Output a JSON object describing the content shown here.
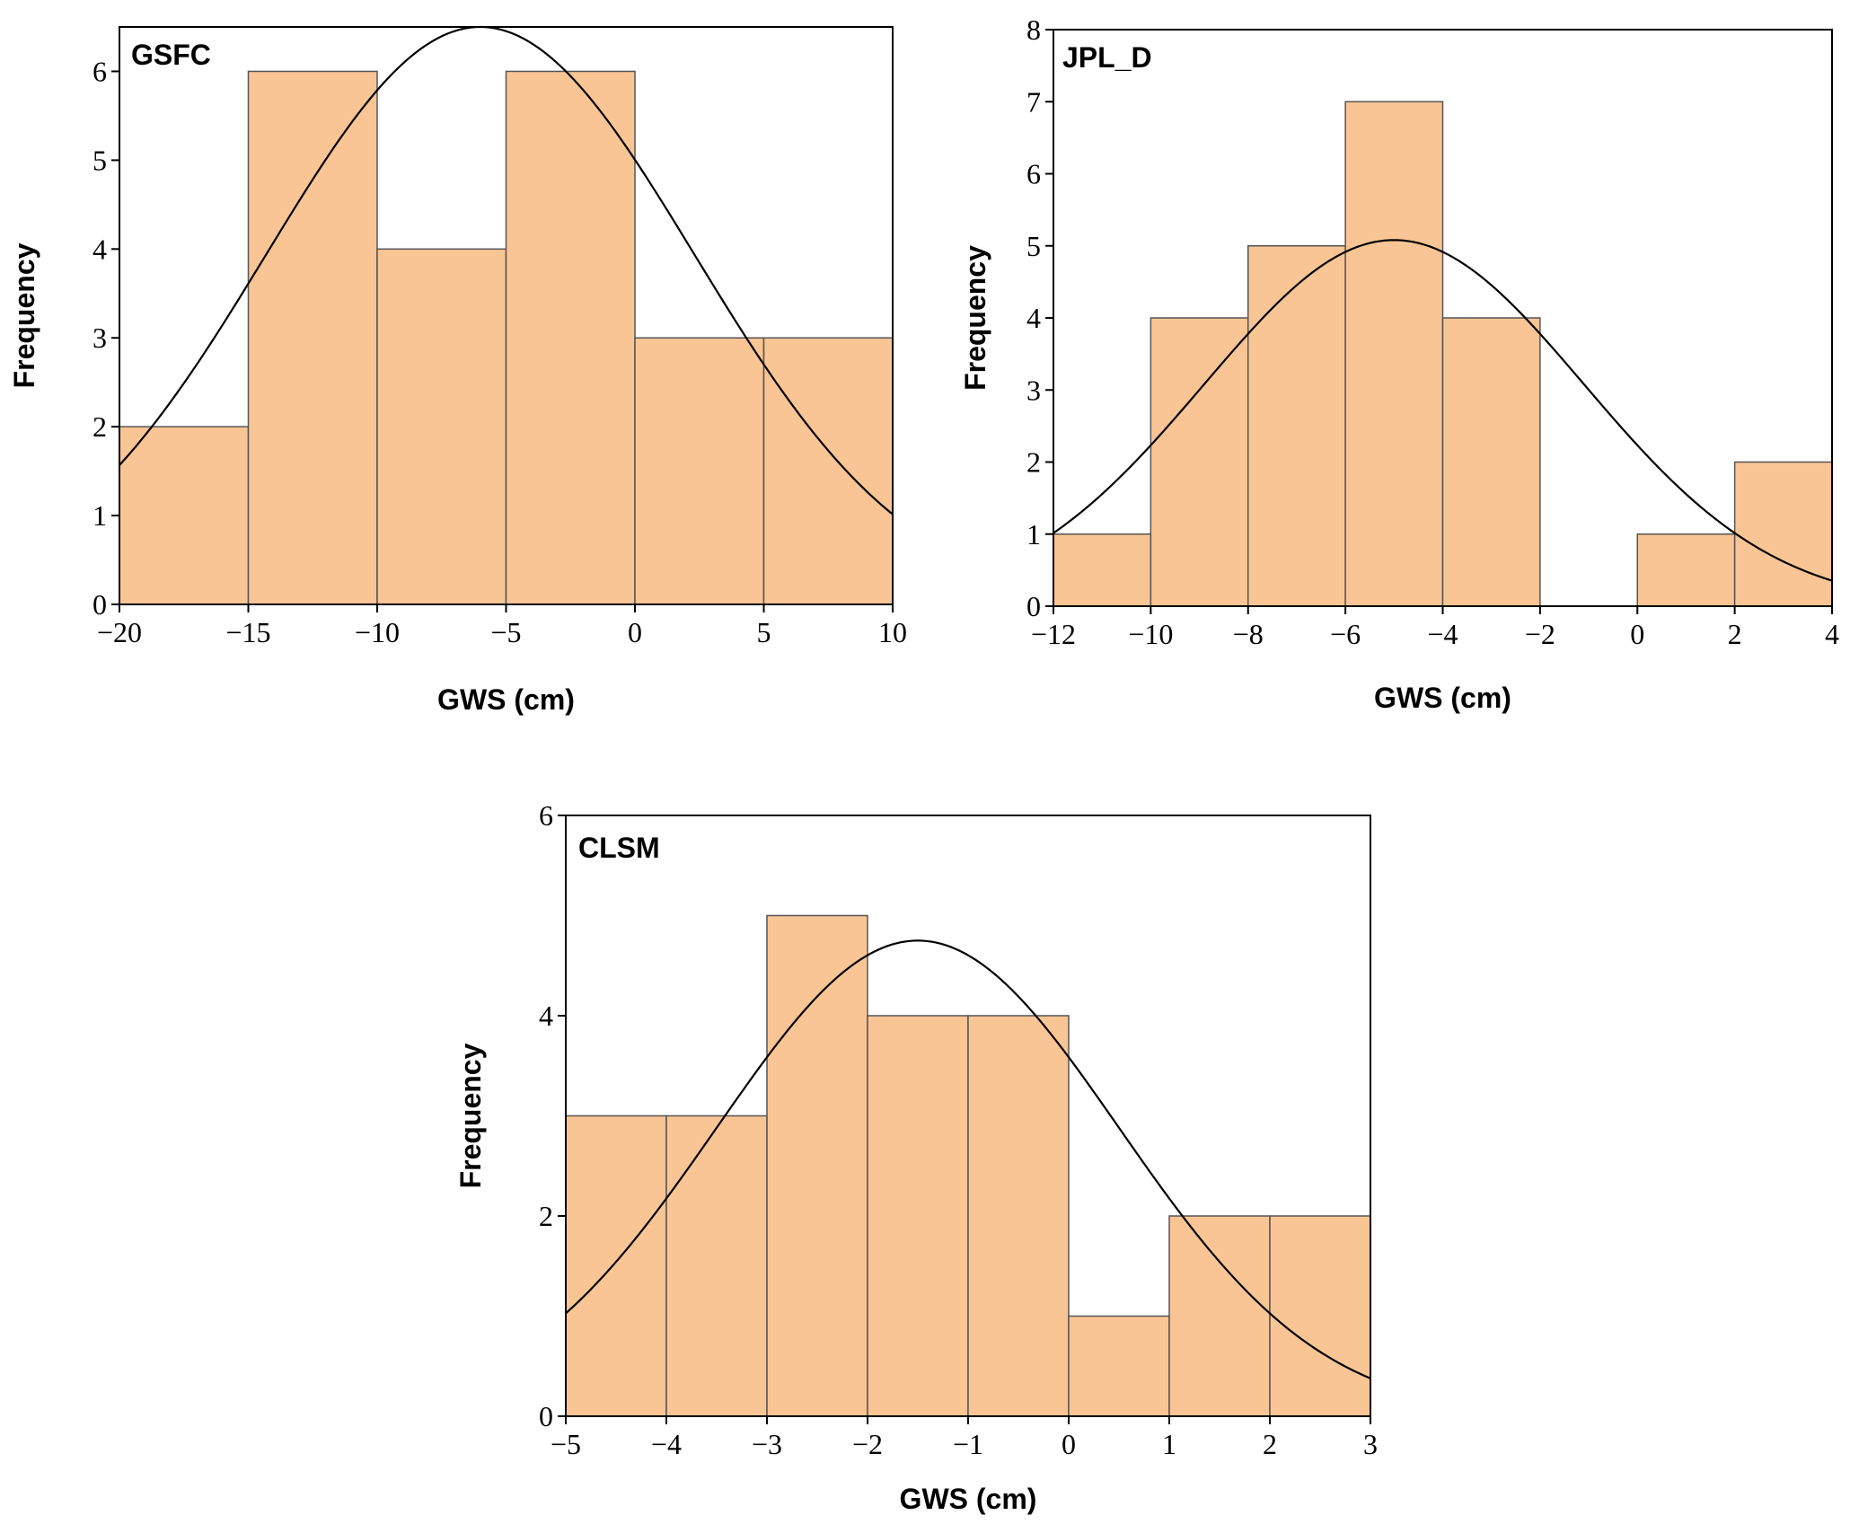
{
  "colors": {
    "bar_fill": "#F9C595",
    "bar_stroke": "#555555",
    "curve": "#000000",
    "frame": "#000000"
  },
  "chart_data": [
    {
      "type": "bar",
      "title": "GSFC",
      "xlabel": "GWS (cm)",
      "ylabel": "Frequency",
      "xlim": [
        -20,
        10
      ],
      "ylim": [
        0,
        6.5
      ],
      "xticks": [
        -20,
        -15,
        -10,
        -5,
        0,
        5,
        10
      ],
      "xtick_labels": [
        "−20",
        "−15",
        "−10",
        "−5",
        "0",
        "5",
        "10"
      ],
      "yticks": [
        0,
        1,
        2,
        3,
        4,
        5,
        6
      ],
      "ytick_labels": [
        "0",
        "1",
        "2",
        "3",
        "4",
        "5",
        "6"
      ],
      "bin_edges": [
        -20,
        -15,
        -10,
        -5,
        0,
        5,
        10
      ],
      "values": [
        2,
        6,
        4,
        6,
        3,
        3
      ],
      "normal_curve": {
        "mean": -6,
        "sd": 8.3,
        "peak": 6.5
      }
    },
    {
      "type": "bar",
      "title": "JPL_D",
      "xlabel": "GWS (cm)",
      "ylabel": "Frequency",
      "xlim": [
        -12,
        4
      ],
      "ylim": [
        0,
        8
      ],
      "xticks": [
        -12,
        -10,
        -8,
        -6,
        -4,
        -2,
        0,
        2,
        4
      ],
      "xtick_labels": [
        "−12",
        "−10",
        "−8",
        "−6",
        "−4",
        "−2",
        "0",
        "2",
        "4"
      ],
      "yticks": [
        0,
        1,
        2,
        3,
        4,
        5,
        6,
        7,
        8
      ],
      "ytick_labels": [
        "0",
        "1",
        "2",
        "3",
        "4",
        "5",
        "6",
        "7",
        "8"
      ],
      "bin_edges": [
        -12,
        -10,
        -8,
        -6,
        -4,
        -2,
        0,
        2,
        4
      ],
      "values": [
        1,
        4,
        5,
        7,
        4,
        0,
        1,
        2
      ],
      "normal_curve": {
        "mean": -5,
        "sd": 3.9,
        "peak": 5.08
      }
    },
    {
      "type": "bar",
      "title": "CLSM",
      "xlabel": "GWS (cm)",
      "ylabel": "Frequency",
      "xlim": [
        -5,
        3
      ],
      "ylim": [
        0,
        6
      ],
      "xticks": [
        -5,
        -4,
        -3,
        -2,
        -1,
        0,
        1,
        2,
        3
      ],
      "xtick_labels": [
        "−5",
        "−4",
        "−3",
        "−2",
        "−1",
        "0",
        "1",
        "2",
        "3"
      ],
      "yticks": [
        0,
        2,
        4,
        6
      ],
      "ytick_labels": [
        "0",
        "2",
        "4",
        "6"
      ],
      "bin_edges": [
        -5,
        -4,
        -3,
        -2,
        -1,
        0,
        1,
        2,
        3
      ],
      "values": [
        3,
        3,
        5,
        4,
        4,
        1,
        2,
        2
      ],
      "normal_curve": {
        "mean": -1.5,
        "sd": 2.0,
        "peak": 4.75
      }
    }
  ]
}
